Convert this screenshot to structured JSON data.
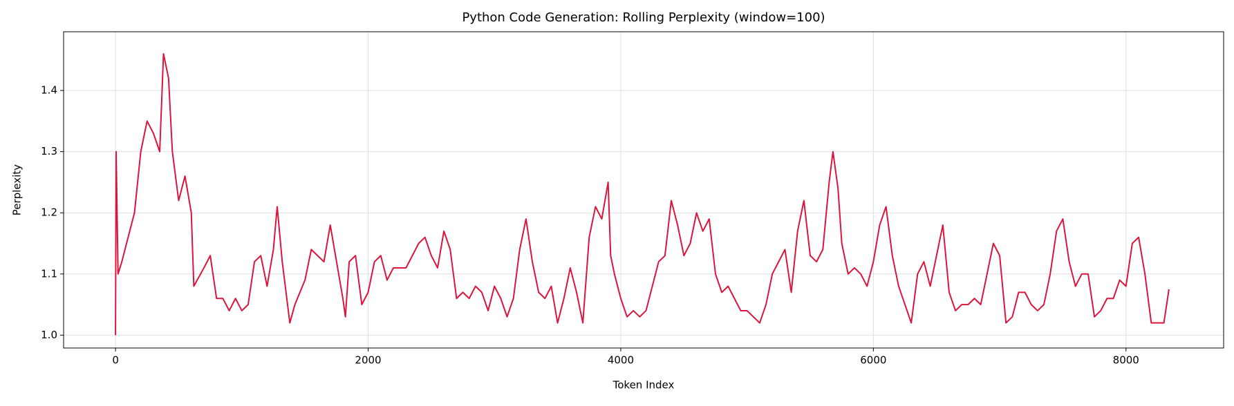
{
  "chart_data": {
    "type": "line",
    "title": "Python Code Generation: Rolling Perplexity (window=100)",
    "x_label": "Token Index",
    "y_label": "Perplexity",
    "color": "#dc143c",
    "grid": true,
    "xlim": [
      -411,
      8773
    ],
    "ylim": [
      0.979,
      1.496
    ],
    "xticks": [
      0,
      2000,
      4000,
      6000,
      8000
    ],
    "yticks": [
      {
        "value": 1,
        "label": "1.0"
      },
      1.1,
      1.2,
      1.3,
      1.4
    ],
    "x": [
      0,
      5,
      20,
      50,
      100,
      150,
      200,
      250,
      300,
      350,
      380,
      420,
      450,
      500,
      550,
      600,
      620,
      700,
      750,
      800,
      850,
      900,
      950,
      1000,
      1050,
      1100,
      1150,
      1200,
      1250,
      1280,
      1320,
      1380,
      1420,
      1500,
      1550,
      1600,
      1650,
      1700,
      1750,
      1800,
      1820,
      1850,
      1900,
      1950,
      2000,
      2050,
      2100,
      2150,
      2200,
      2300,
      2400,
      2450,
      2500,
      2550,
      2600,
      2650,
      2700,
      2750,
      2800,
      2850,
      2900,
      2950,
      3000,
      3050,
      3100,
      3150,
      3200,
      3250,
      3300,
      3350,
      3400,
      3450,
      3500,
      3550,
      3600,
      3650,
      3700,
      3750,
      3800,
      3850,
      3900,
      3920,
      3950,
      4000,
      4050,
      4100,
      4150,
      4200,
      4250,
      4300,
      4350,
      4400,
      4450,
      4500,
      4550,
      4600,
      4650,
      4700,
      4750,
      4800,
      4850,
      4900,
      4950,
      5000,
      5050,
      5100,
      5150,
      5200,
      5250,
      5300,
      5350,
      5400,
      5450,
      5500,
      5550,
      5600,
      5650,
      5680,
      5720,
      5750,
      5800,
      5850,
      5900,
      5950,
      6000,
      6050,
      6100,
      6150,
      6200,
      6250,
      6300,
      6350,
      6400,
      6450,
      6500,
      6550,
      6600,
      6650,
      6700,
      6750,
      6800,
      6850,
      6900,
      6950,
      7000,
      7050,
      7100,
      7150,
      7200,
      7250,
      7300,
      7350,
      7400,
      7450,
      7500,
      7550,
      7600,
      7650,
      7700,
      7750,
      7800,
      7850,
      7900,
      7950,
      8000,
      8050,
      8100,
      8150,
      8200,
      8250,
      8300,
      8340
    ],
    "values": [
      1.0,
      1.3,
      1.1,
      1.12,
      1.16,
      1.2,
      1.3,
      1.35,
      1.33,
      1.3,
      1.46,
      1.42,
      1.3,
      1.22,
      1.26,
      1.2,
      1.08,
      1.11,
      1.13,
      1.06,
      1.06,
      1.04,
      1.06,
      1.04,
      1.05,
      1.12,
      1.13,
      1.08,
      1.14,
      1.21,
      1.12,
      1.02,
      1.05,
      1.09,
      1.14,
      1.13,
      1.12,
      1.18,
      1.12,
      1.06,
      1.03,
      1.12,
      1.13,
      1.05,
      1.07,
      1.12,
      1.13,
      1.09,
      1.11,
      1.11,
      1.15,
      1.16,
      1.13,
      1.11,
      1.17,
      1.14,
      1.06,
      1.07,
      1.06,
      1.08,
      1.07,
      1.04,
      1.08,
      1.06,
      1.03,
      1.06,
      1.14,
      1.19,
      1.12,
      1.07,
      1.06,
      1.08,
      1.02,
      1.06,
      1.11,
      1.07,
      1.02,
      1.16,
      1.21,
      1.19,
      1.25,
      1.13,
      1.1,
      1.06,
      1.03,
      1.04,
      1.03,
      1.04,
      1.08,
      1.12,
      1.13,
      1.22,
      1.18,
      1.13,
      1.15,
      1.2,
      1.17,
      1.19,
      1.1,
      1.07,
      1.08,
      1.06,
      1.04,
      1.04,
      1.03,
      1.02,
      1.05,
      1.1,
      1.12,
      1.14,
      1.07,
      1.17,
      1.22,
      1.13,
      1.12,
      1.14,
      1.25,
      1.3,
      1.24,
      1.15,
      1.1,
      1.11,
      1.1,
      1.08,
      1.12,
      1.18,
      1.21,
      1.13,
      1.08,
      1.05,
      1.02,
      1.1,
      1.12,
      1.08,
      1.13,
      1.18,
      1.07,
      1.04,
      1.05,
      1.05,
      1.06,
      1.05,
      1.1,
      1.15,
      1.13,
      1.02,
      1.03,
      1.07,
      1.07,
      1.05,
      1.04,
      1.05,
      1.1,
      1.17,
      1.19,
      1.12,
      1.08,
      1.1,
      1.1,
      1.03,
      1.04,
      1.06,
      1.06,
      1.09,
      1.08,
      1.15,
      1.16,
      1.1,
      1.02,
      1.02,
      1.02,
      1.075
    ]
  }
}
